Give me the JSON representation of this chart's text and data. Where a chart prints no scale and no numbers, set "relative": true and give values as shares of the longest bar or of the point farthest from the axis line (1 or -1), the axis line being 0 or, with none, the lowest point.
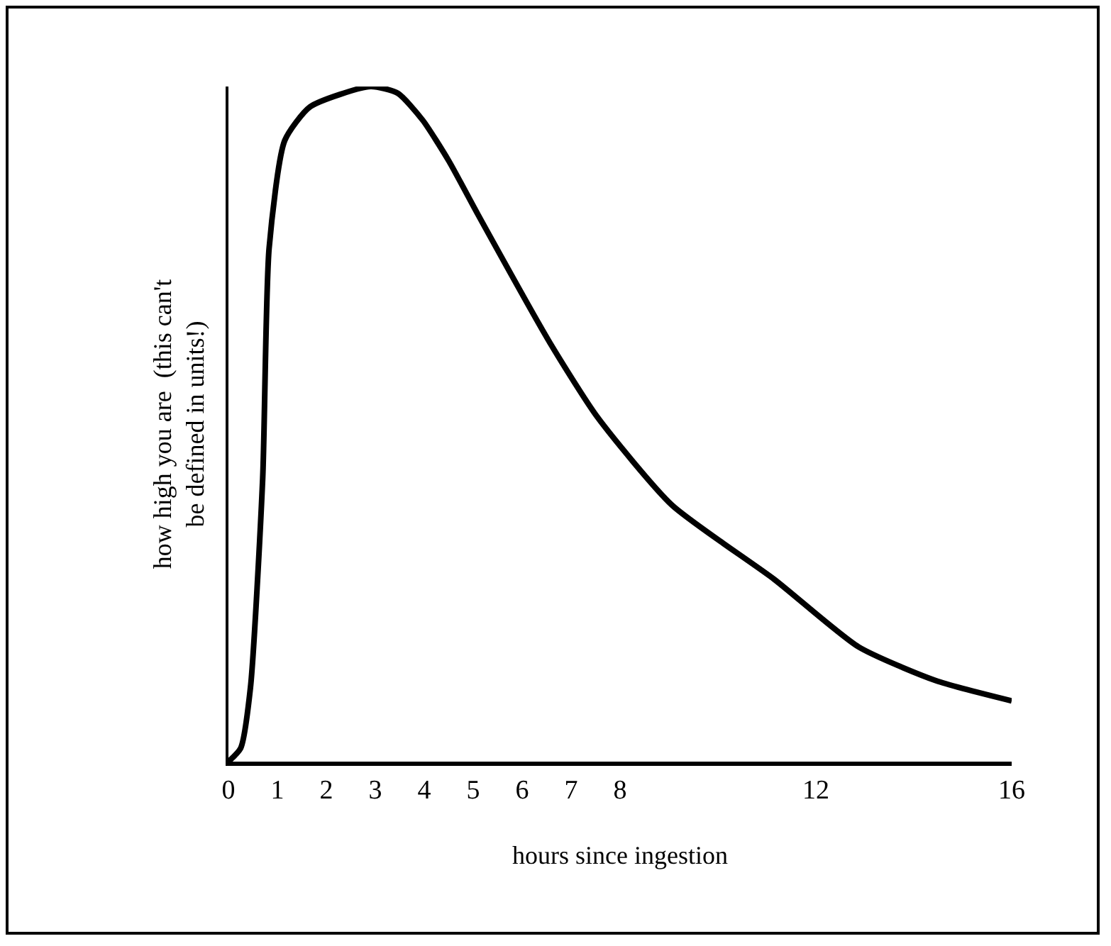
{
  "chart_data": {
    "type": "line",
    "relative": true,
    "xlabel": "hours since ingestion",
    "ylabel": "how high you are  (this can't\nbe defined in units!)",
    "xlim": [
      0,
      16
    ],
    "xticks": [
      0,
      1,
      2,
      3,
      4,
      5,
      6,
      7,
      8,
      12,
      16
    ],
    "line_style": "solid",
    "series": [
      {
        "color": "#000000",
        "x": [
          0,
          0.25,
          0.45,
          0.7,
          0.83,
          1.15,
          1.67,
          2.9,
          3.46,
          3.97,
          4.5,
          5.1,
          6.57,
          7.54,
          9.06,
          11.15,
          12.87,
          14.45,
          16
        ],
        "values": [
          0,
          0.02,
          0.11,
          0.42,
          0.76,
          0.92,
          0.97,
          1.0,
          0.99,
          0.95,
          0.89,
          0.81,
          0.62,
          0.51,
          0.38,
          0.27,
          0.17,
          0.12,
          0.09
        ]
      }
    ]
  }
}
